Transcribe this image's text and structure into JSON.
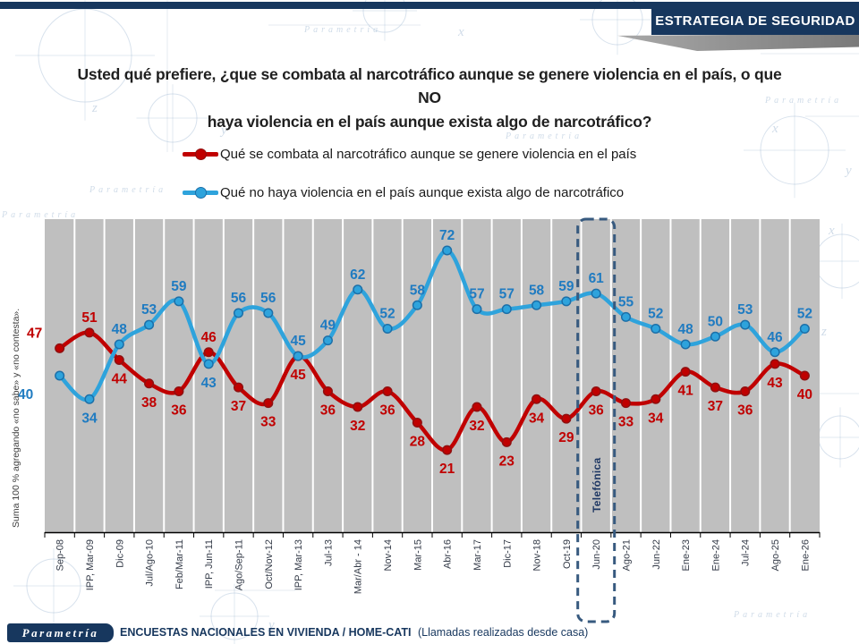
{
  "header": {
    "title": "ESTRATEGIA DE SEGURIDAD"
  },
  "question": {
    "line1": "Usted qué prefiere, ¿que se combata al narcotráfico aunque se genere violencia en el país, o que NO",
    "line2": "haya violencia en el país aunque exista algo de narcotráfico?"
  },
  "legend": [
    {
      "label": "Qué se combata al narcotráfico aunque se genere violencia en el país",
      "color": "#C00000",
      "dot_border": "#8F1010"
    },
    {
      "label": "Qué no haya violencia en el país aunque exista algo de narcotráfico",
      "color": "#2EA3DC",
      "dot_border": "#1C6FA8"
    }
  ],
  "y_axis_note": "Suma 100 % agregando «no sabe» y «no contesta».",
  "chart_data": {
    "type": "line",
    "title": "",
    "xlabel": "",
    "ylabel": "",
    "ylim": [
      0,
      80
    ],
    "grid": "vertical white gridlines on gray plot background",
    "plot_bg": "#BFBFBF",
    "legend_position": "top",
    "categories": [
      "Sep-08",
      "IPP, Mar-09",
      "Dic-09",
      "Jul/Ago-10",
      "Feb/Mar-11",
      "IPP, Jun-11",
      "Ago/Sep-11",
      "Oct/Nov-12",
      "IPP, Mar-13",
      "Jul-13",
      "Mar/Abr - 14",
      "Nov-14",
      "Mar-15",
      "Abr-16",
      "Mar-17",
      "Dic-17",
      "Nov-18",
      "Oct-19",
      "Jun-20",
      "Ago-21",
      "Jun-22",
      "Ene-23",
      "Ene-24",
      "Jul-24",
      "Ago-25",
      "Ene-26"
    ],
    "series": [
      {
        "name": "Qué se combata al narcotráfico aunque se genere violencia en el país",
        "color": "#C00000",
        "marker_stroke": "#8F1010",
        "label_color": "#C00000",
        "values": [
          47,
          51,
          44,
          38,
          36,
          46,
          37,
          33,
          45,
          36,
          32,
          36,
          28,
          21,
          32,
          23,
          34,
          29,
          36,
          33,
          34,
          41,
          37,
          36,
          43,
          40
        ]
      },
      {
        "name": "Qué no haya violencia en el país aunque exista algo de narcotráfico",
        "color": "#2EA3DC",
        "marker_stroke": "#1C6FA8",
        "label_color": "#1F7BC1",
        "values": [
          40,
          34,
          48,
          53,
          59,
          43,
          56,
          56,
          45,
          49,
          62,
          52,
          58,
          72,
          57,
          57,
          58,
          59,
          61,
          55,
          52,
          48,
          50,
          53,
          46,
          52
        ]
      }
    ],
    "highlight": {
      "category": "Jun-20",
      "label": "Telefónica",
      "box_color": "#375A7F",
      "label_color": "#1F3864"
    }
  },
  "footer": {
    "logo": "Parametría",
    "text_bold": "ENCUESTAS NACIONALES EN VIVIENDA / HOME-CATI",
    "text_normal": "(Llamadas realizadas desde casa)"
  },
  "watermark": "Parametría"
}
